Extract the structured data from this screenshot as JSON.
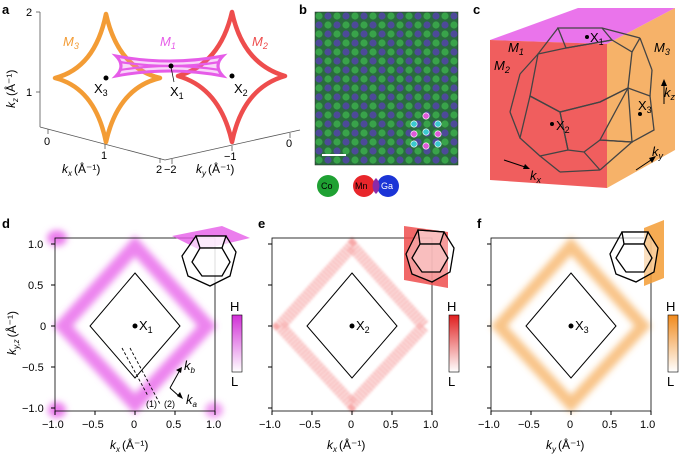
{
  "colors": {
    "M1": "#e65ce8",
    "M2": "#ee4d4d",
    "M3": "#f39c35",
    "Co": "#1fa133",
    "Mn": "#e8262b",
    "Ga": "#1b34d6"
  },
  "panels": {
    "a": {
      "label": "a",
      "axis_kz": "k",
      "axis_kz_sub": "z",
      "axis_kz_unit": "(Å⁻¹)",
      "axis_kx": "k",
      "axis_kx_sub": "x",
      "axis_kx_unit": "(Å⁻¹)",
      "axis_ky": "k",
      "axis_ky_sub": "y",
      "axis_ky_unit": "(Å⁻¹)",
      "kz_ticks": [
        "2",
        "1"
      ],
      "kx_ticks": [
        "0",
        "1",
        "2"
      ],
      "ky_ticks": [
        "−2",
        "−1",
        "0"
      ],
      "surfaces": [
        {
          "name": "M",
          "sub": "3"
        },
        {
          "name": "M",
          "sub": "1"
        },
        {
          "name": "M",
          "sub": "2"
        }
      ],
      "points": [
        {
          "name": "X",
          "sub": "3"
        },
        {
          "name": "X",
          "sub": "1"
        },
        {
          "name": "X",
          "sub": "2"
        }
      ]
    },
    "b": {
      "label": "b",
      "legend": [
        "Co",
        "Mn",
        "Ga"
      ]
    },
    "c": {
      "label": "c",
      "faces": [
        {
          "name": "M",
          "sub": "1"
        },
        {
          "name": "M",
          "sub": "2"
        },
        {
          "name": "M",
          "sub": "3"
        }
      ],
      "points": [
        {
          "name": "X",
          "sub": "1"
        },
        {
          "name": "X",
          "sub": "2"
        },
        {
          "name": "X",
          "sub": "3"
        }
      ],
      "axes": [
        {
          "name": "k",
          "sub": "x"
        },
        {
          "name": "k",
          "sub": "y"
        },
        {
          "name": "k",
          "sub": "z"
        }
      ]
    },
    "d": {
      "label": "d",
      "ylabel": "k",
      "ylabel_sub": "y,z",
      "ylabel_unit": "(Å⁻¹)",
      "xlabel": "k",
      "xlabel_sub": "x",
      "xlabel_unit": "(Å⁻¹)",
      "yticks": [
        "1.0",
        "0.5",
        "0",
        "−0.5",
        "−1.0"
      ],
      "xticks": [
        "−1.0",
        "−0.5",
        "0",
        "0.5",
        "1.0"
      ],
      "center": {
        "name": "X",
        "sub": "1"
      },
      "cuts": [
        "(1)",
        "(2)"
      ],
      "kb": {
        "name": "k",
        "sub": "b"
      },
      "ka": {
        "name": "k",
        "sub": "a"
      },
      "colorbar_high": "H",
      "colorbar_low": "L"
    },
    "e": {
      "label": "e",
      "xlabel": "k",
      "xlabel_sub": "x",
      "xlabel_unit": "(Å⁻¹)",
      "xticks": [
        "−1.0",
        "−0.5",
        "0",
        "0.5",
        "1.0"
      ],
      "center": {
        "name": "X",
        "sub": "2"
      },
      "colorbar_high": "H",
      "colorbar_low": "L"
    },
    "f": {
      "label": "f",
      "xlabel": "k",
      "xlabel_sub": "y",
      "xlabel_unit": "(Å⁻¹)",
      "xticks": [
        "−1.0",
        "−0.5",
        "0",
        "0.5",
        "1.0"
      ],
      "center": {
        "name": "X",
        "sub": "3"
      },
      "colorbar_high": "H",
      "colorbar_low": "L"
    }
  }
}
